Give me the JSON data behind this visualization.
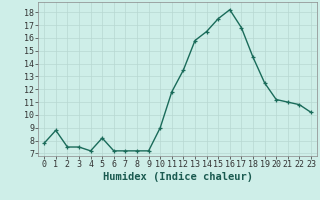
{
  "x": [
    0,
    1,
    2,
    3,
    4,
    5,
    6,
    7,
    8,
    9,
    10,
    11,
    12,
    13,
    14,
    15,
    16,
    17,
    18,
    19,
    20,
    21,
    22,
    23
  ],
  "y": [
    7.8,
    8.8,
    7.5,
    7.5,
    7.2,
    8.2,
    7.2,
    7.2,
    7.2,
    7.2,
    9.0,
    11.8,
    13.5,
    15.8,
    16.5,
    17.5,
    18.2,
    16.8,
    14.5,
    12.5,
    11.2,
    11.0,
    10.8,
    10.2
  ],
  "line_color": "#1a6b5a",
  "marker": "+",
  "markersize": 3.5,
  "linewidth": 1.0,
  "bg_color": "#ceeee8",
  "grid_color": "#b8d8d2",
  "xlabel": "Humidex (Indice chaleur)",
  "xlabel_fontsize": 7.5,
  "ylabel_ticks": [
    7,
    8,
    9,
    10,
    11,
    12,
    13,
    14,
    15,
    16,
    17,
    18
  ],
  "xlim": [
    -0.5,
    23.5
  ],
  "ylim": [
    6.8,
    18.8
  ],
  "tick_fontsize": 6.0,
  "xlabel_color": "#1a5a50",
  "spine_color": "#888888"
}
